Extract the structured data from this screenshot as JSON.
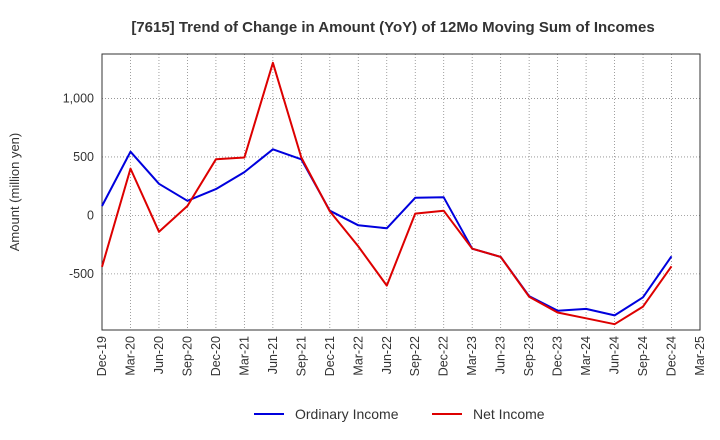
{
  "chart_data": {
    "type": "line",
    "title": "[7615]  Trend of Change in Amount (YoY) of 12Mo Moving Sum of Incomes",
    "xlabel": "",
    "ylabel": "Amount (million yen)",
    "ylim": [
      -980,
      1380
    ],
    "y_ticks": [
      -500,
      0,
      500,
      1000
    ],
    "y_tick_labels": [
      "-500",
      "0",
      "500",
      "1,000"
    ],
    "grid": true,
    "legend_position": "bottom",
    "categories": [
      "Dec-19",
      "Mar-20",
      "Jun-20",
      "Sep-20",
      "Dec-20",
      "Mar-21",
      "Jun-21",
      "Sep-21",
      "Dec-21",
      "Mar-22",
      "Jun-22",
      "Sep-22",
      "Dec-22",
      "Mar-23",
      "Jun-23",
      "Sep-23",
      "Dec-23",
      "Mar-24",
      "Jun-24",
      "Sep-24",
      "Dec-24",
      "Mar-25"
    ],
    "series": [
      {
        "name": "Ordinary Income",
        "color": "#0000dd",
        "values": [
          80,
          545,
          270,
          125,
          225,
          370,
          565,
          480,
          40,
          -85,
          -110,
          150,
          155,
          -285,
          -355,
          -690,
          -815,
          -800,
          -855,
          -700,
          -350,
          null
        ]
      },
      {
        "name": "Net Income",
        "color": "#dd0000",
        "values": [
          -440,
          400,
          -140,
          80,
          480,
          495,
          1305,
          495,
          35,
          -265,
          -600,
          15,
          40,
          -285,
          -355,
          -695,
          -830,
          -880,
          -930,
          -780,
          -435,
          null
        ]
      }
    ]
  }
}
